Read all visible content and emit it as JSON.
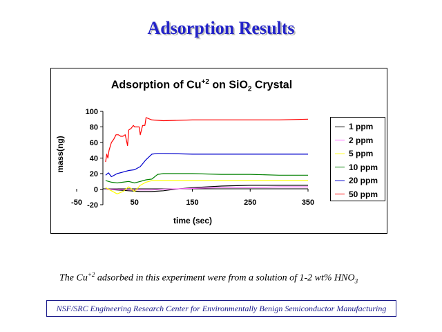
{
  "slide": {
    "title": "Adsorption Results",
    "footnote": {
      "pre": "The Cu",
      "sup": "+2",
      "mid": " adsorbed in this experiment were from a solution of 1-2 wt% HNO",
      "sub": "3"
    },
    "banner": "NSF/SRC Engineering Research Center for Environmentally Benign Semiconductor Manufacturing"
  },
  "chart_data": {
    "type": "line",
    "title_parts": {
      "a": "Adsorption of Cu",
      "b": "+2",
      "c": " on SiO",
      "d": "2",
      "e": " Crystal"
    },
    "xlabel": "time (sec)",
    "ylabel": "mass(ng)",
    "xlim": [
      -50,
      350
    ],
    "ylim": [
      -20,
      100
    ],
    "x_ticks": [
      -50,
      50,
      150,
      250,
      350
    ],
    "y_ticks": [
      -20,
      0,
      20,
      40,
      60,
      80,
      100
    ],
    "grid": false,
    "legend_position": "right",
    "series": [
      {
        "name": "1 ppm",
        "color": "#000000",
        "x": [
          0,
          20,
          40,
          60,
          80,
          100,
          120,
          150,
          200,
          250,
          300,
          350
        ],
        "y": [
          0,
          -1,
          -2,
          -3,
          -3,
          -2,
          0,
          2,
          4,
          5,
          5,
          5
        ]
      },
      {
        "name": "2 ppm",
        "color": "#ff66ff",
        "x": [
          0,
          20,
          40,
          60,
          80,
          100,
          150,
          200,
          250,
          300,
          350
        ],
        "y": [
          0,
          0,
          -1,
          -1,
          -1,
          0,
          1,
          2,
          2,
          3,
          3
        ]
      },
      {
        "name": "5 ppm",
        "color": "#ffff00",
        "x": [
          0,
          10,
          20,
          30,
          40,
          50,
          60,
          70,
          80,
          100,
          150,
          200,
          250,
          300,
          350
        ],
        "y": [
          2,
          -2,
          -6,
          -3,
          3,
          -3,
          5,
          9,
          11,
          11,
          11,
          11,
          11,
          11,
          11
        ]
      },
      {
        "name": "10 ppm",
        "color": "#008000",
        "x": [
          0,
          10,
          20,
          30,
          40,
          50,
          60,
          70,
          80,
          90,
          100,
          150,
          200,
          250,
          300,
          350
        ],
        "y": [
          11,
          9,
          8,
          9,
          10,
          8,
          10,
          12,
          13,
          19,
          20,
          20,
          19,
          19,
          18,
          18
        ]
      },
      {
        "name": "20 ppm",
        "color": "#0000cc",
        "x": [
          0,
          5,
          10,
          20,
          30,
          40,
          50,
          60,
          70,
          80,
          90,
          100,
          150,
          200,
          250,
          300,
          350
        ],
        "y": [
          18,
          21,
          16,
          20,
          22,
          24,
          25,
          29,
          38,
          45,
          46,
          46,
          45,
          45,
          45,
          45,
          45
        ]
      },
      {
        "name": "50 ppm",
        "color": "#ff0000",
        "x": [
          0,
          2,
          4,
          6,
          10,
          14,
          18,
          22,
          26,
          30,
          34,
          38,
          40,
          44,
          48,
          50,
          54,
          58,
          60,
          64,
          68,
          70,
          80,
          100,
          150,
          200,
          250,
          300,
          350
        ],
        "y": [
          35,
          45,
          40,
          50,
          60,
          64,
          70,
          70,
          68,
          68,
          70,
          56,
          76,
          78,
          82,
          80,
          80,
          80,
          70,
          82,
          82,
          92,
          89,
          88,
          89,
          89,
          89,
          89,
          90
        ]
      }
    ]
  }
}
